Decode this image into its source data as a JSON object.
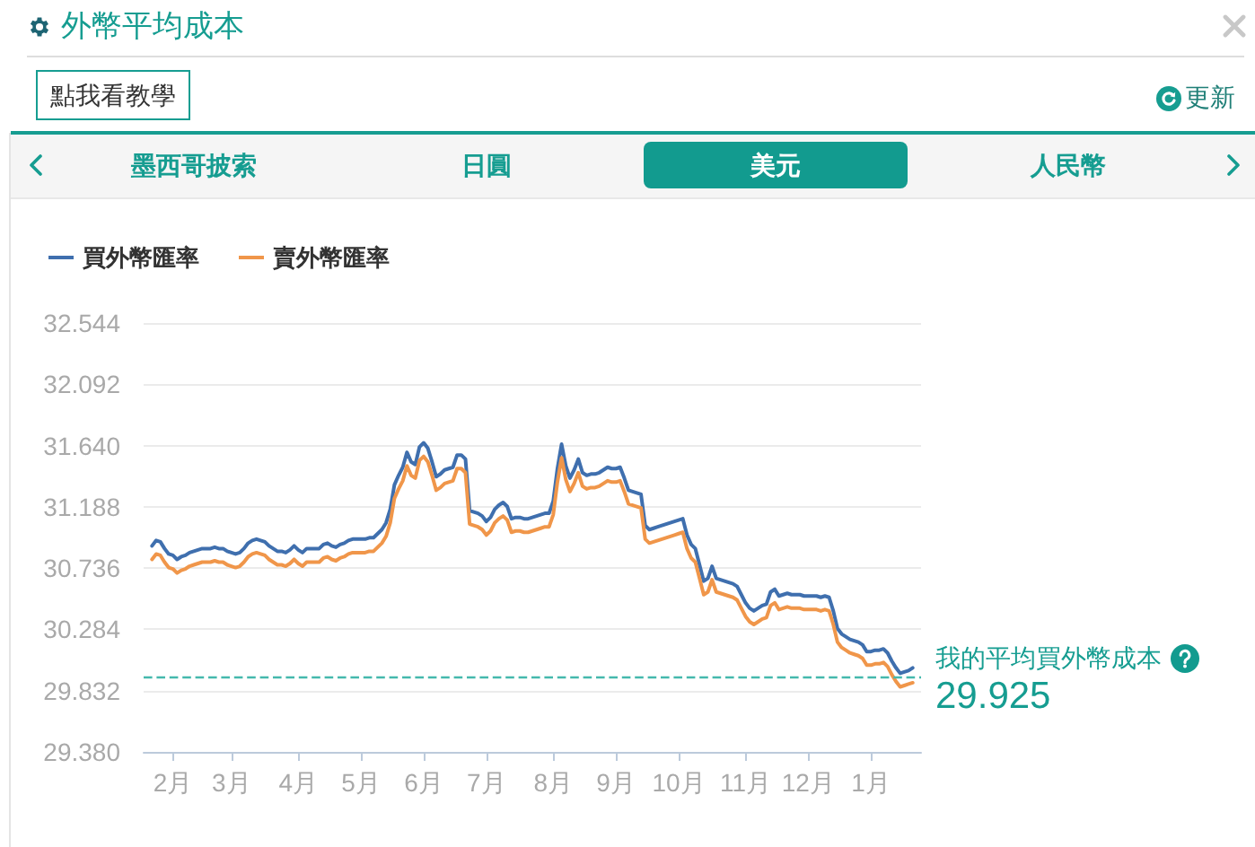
{
  "chart_data": {
    "type": "line",
    "title": "外幣平均成本",
    "annotations": [
      "點我看教學",
      "更新",
      "墨西哥披索",
      "日圓",
      "美元",
      "人民幣",
      "29.925"
    ],
    "categories": [
      null,
      null,
      null,
      null,
      null,
      null,
      null,
      "2月",
      null,
      null,
      null,
      null,
      null,
      null,
      null,
      null,
      null,
      null,
      null,
      null,
      null,
      "3月",
      null,
      null,
      null,
      null,
      null,
      null,
      null,
      null,
      null,
      null,
      null,
      null,
      null,
      null,
      null,
      "4月",
      null,
      null,
      null,
      null,
      null,
      null,
      null,
      null,
      null,
      null,
      null,
      null,
      null,
      null,
      "5月",
      null,
      null,
      null,
      null,
      null,
      null,
      null,
      null,
      null,
      null,
      null,
      null,
      null,
      null,
      "6月",
      null,
      null,
      null,
      null,
      null,
      null,
      null,
      null,
      null,
      null,
      null,
      null,
      null,
      null,
      "7月",
      null,
      null,
      null,
      null,
      null,
      null,
      null,
      null,
      null,
      null,
      null,
      null,
      null,
      null,
      null,
      "8月",
      null,
      null,
      null,
      null,
      null,
      null,
      null,
      null,
      null,
      null,
      null,
      null,
      null,
      null,
      "9月",
      null,
      null,
      null,
      null,
      null,
      null,
      null,
      null,
      null,
      null,
      null,
      null,
      null,
      null,
      "10月",
      null,
      null,
      null,
      null,
      null,
      null,
      null,
      null,
      null,
      null,
      null,
      null,
      null,
      null,
      null,
      "11月",
      null,
      null,
      null,
      null,
      null,
      null,
      null,
      null,
      null,
      null,
      null,
      null,
      null,
      null,
      "12月",
      null,
      null,
      null,
      null,
      null,
      null,
      null,
      null,
      null,
      null,
      null,
      null,
      null,
      null,
      "1月",
      null,
      null,
      null,
      null,
      null,
      null,
      null,
      null,
      null,
      null,
      null,
      null
    ],
    "series": [
      {
        "name": "買外幣匯率",
        "color": "#3f6fae",
        "values": [
          null,
          null,
          30.9,
          30.94,
          30.93,
          30.88,
          30.84,
          30.83,
          30.8,
          30.82,
          30.83,
          30.85,
          30.86,
          30.87,
          30.88,
          30.88,
          30.88,
          30.89,
          30.88,
          30.88,
          30.86,
          30.85,
          30.84,
          30.85,
          30.88,
          30.92,
          30.94,
          30.95,
          30.94,
          30.93,
          30.9,
          30.88,
          30.86,
          30.86,
          30.85,
          30.87,
          30.9,
          30.87,
          30.85,
          30.88,
          30.88,
          30.88,
          30.88,
          30.91,
          30.92,
          30.9,
          30.89,
          30.91,
          30.92,
          30.94,
          30.95,
          30.95,
          30.95,
          30.95,
          30.96,
          30.96,
          30.99,
          31.02,
          31.07,
          31.17,
          31.35,
          31.42,
          31.48,
          31.59,
          31.52,
          31.5,
          31.63,
          31.66,
          31.62,
          31.52,
          31.41,
          31.43,
          31.46,
          31.47,
          31.48,
          31.57,
          31.57,
          31.54,
          31.16,
          31.15,
          31.14,
          31.12,
          31.08,
          31.11,
          31.17,
          31.2,
          31.22,
          31.19,
          31.1,
          31.11,
          31.11,
          31.1,
          31.1,
          31.11,
          31.12,
          31.13,
          31.14,
          31.14,
          31.23,
          31.47,
          31.65,
          31.49,
          31.4,
          31.46,
          31.54,
          31.44,
          31.42,
          31.43,
          31.43,
          31.44,
          31.46,
          31.48,
          31.47,
          31.47,
          31.48,
          31.4,
          31.31,
          31.3,
          31.29,
          31.28,
          31.05,
          31.02,
          31.03,
          31.04,
          31.05,
          31.06,
          31.07,
          31.08,
          31.09,
          31.1,
          30.98,
          30.91,
          30.88,
          30.76,
          30.64,
          30.66,
          30.75,
          30.66,
          30.65,
          30.64,
          30.63,
          30.62,
          30.6,
          30.54,
          30.48,
          30.44,
          30.42,
          30.44,
          30.46,
          30.47,
          30.56,
          30.58,
          30.53,
          30.54,
          30.55,
          30.54,
          30.54,
          30.54,
          30.53,
          30.53,
          30.53,
          30.53,
          30.52,
          30.53,
          30.52,
          30.42,
          30.29,
          30.25,
          30.23,
          30.21,
          30.2,
          30.19,
          30.17,
          30.12,
          30.12,
          30.13,
          30.13,
          30.14,
          30.11,
          30.05,
          30.0,
          29.96,
          29.97,
          29.98,
          30.0,
          null,
          null
        ]
      },
      {
        "name": "賣外幣匯率",
        "color": "#f0964a",
        "values": [
          null,
          null,
          30.8,
          30.84,
          30.83,
          30.78,
          30.74,
          30.73,
          30.7,
          30.72,
          30.73,
          30.75,
          30.76,
          30.77,
          30.78,
          30.78,
          30.78,
          30.79,
          30.78,
          30.78,
          30.76,
          30.75,
          30.74,
          30.75,
          30.78,
          30.82,
          30.84,
          30.85,
          30.84,
          30.83,
          30.8,
          30.78,
          30.76,
          30.76,
          30.75,
          30.77,
          30.8,
          30.77,
          30.75,
          30.78,
          30.78,
          30.78,
          30.78,
          30.81,
          30.82,
          30.8,
          30.79,
          30.81,
          30.82,
          30.84,
          30.85,
          30.85,
          30.85,
          30.85,
          30.86,
          30.86,
          30.89,
          30.92,
          30.97,
          31.07,
          31.25,
          31.32,
          31.38,
          31.49,
          31.42,
          31.4,
          31.53,
          31.56,
          31.52,
          31.42,
          31.31,
          31.33,
          31.36,
          31.37,
          31.38,
          31.47,
          31.47,
          31.44,
          31.06,
          31.05,
          31.04,
          31.02,
          30.98,
          31.01,
          31.07,
          31.1,
          31.12,
          31.09,
          31.0,
          31.01,
          31.01,
          31.0,
          31.0,
          31.01,
          31.02,
          31.03,
          31.04,
          31.04,
          31.13,
          31.37,
          31.55,
          31.39,
          31.3,
          31.36,
          31.44,
          31.34,
          31.32,
          31.33,
          31.33,
          31.34,
          31.36,
          31.38,
          31.37,
          31.37,
          31.38,
          31.3,
          31.21,
          31.2,
          31.19,
          31.18,
          30.95,
          30.92,
          30.93,
          30.94,
          30.95,
          30.96,
          30.97,
          30.98,
          30.99,
          31.0,
          30.88,
          30.81,
          30.78,
          30.66,
          30.54,
          30.56,
          30.65,
          30.56,
          30.55,
          30.54,
          30.53,
          30.52,
          30.5,
          30.44,
          30.38,
          30.34,
          30.32,
          30.34,
          30.36,
          30.37,
          30.46,
          30.48,
          30.43,
          30.44,
          30.45,
          30.44,
          30.44,
          30.44,
          30.43,
          30.43,
          30.43,
          30.43,
          30.42,
          30.43,
          30.42,
          30.32,
          30.19,
          30.15,
          30.13,
          30.11,
          30.1,
          30.09,
          30.07,
          30.02,
          30.02,
          30.03,
          30.03,
          30.04,
          30.01,
          29.95,
          29.9,
          29.86,
          29.87,
          29.88,
          29.89,
          null,
          null
        ]
      }
    ],
    "ylim": [
      29.38,
      32.544
    ],
    "yticks": [
      {
        "value": 29.38,
        "label": "29.380"
      },
      {
        "value": 29.832,
        "label": "29.832"
      },
      {
        "value": 30.284,
        "label": "30.284"
      },
      {
        "value": 30.736,
        "label": "30.736"
      },
      {
        "value": 31.188,
        "label": "31.188"
      },
      {
        "value": 31.64,
        "label": "31.640"
      },
      {
        "value": 32.092,
        "label": "32.092"
      },
      {
        "value": 32.544,
        "label": "32.544"
      }
    ],
    "ref_lines": [
      {
        "axis": "y",
        "value": 29.925,
        "label": "我的平均買外幣成本",
        "color": "#45b9ad",
        "line_style": "dashed"
      }
    ],
    "grid": "y",
    "legend": "top left",
    "marker": "none"
  }
}
